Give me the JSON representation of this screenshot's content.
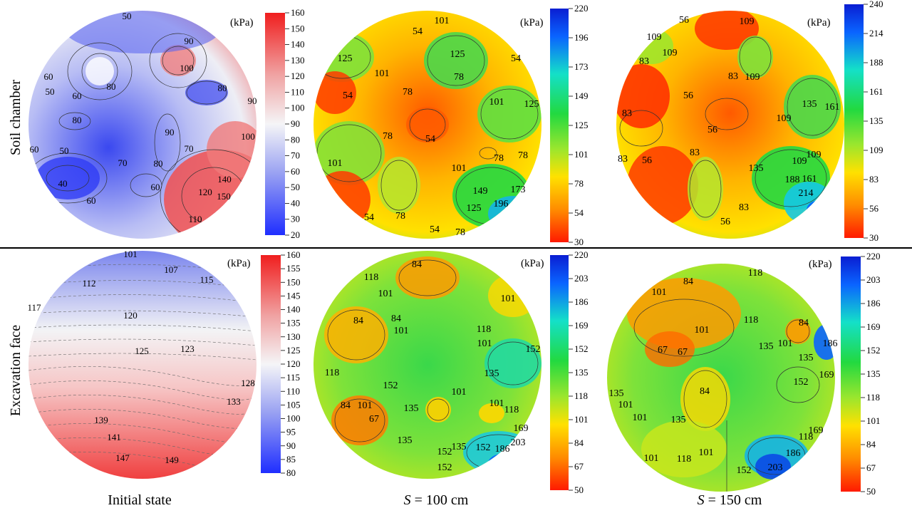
{
  "figure": {
    "row_labels": [
      "Soil chamber",
      "Excavation face"
    ],
    "column_captions": [
      {
        "text": "Initial state",
        "italic_prefix": "",
        "suffix": ""
      },
      {
        "text": "",
        "italic_prefix": "S",
        "suffix": " = 100 cm"
      },
      {
        "text": "",
        "italic_prefix": "S",
        "suffix": " = 150 cm"
      }
    ],
    "unit_label": "(kPa)"
  },
  "colors": {
    "blue": "#1f2eff",
    "light_blue": "#9aa2f2",
    "white": "#f5f5f7",
    "light_red": "#f0a3a3",
    "red": "#f01e1e",
    "rainbow": [
      "#ff1a00",
      "#ff8c00",
      "#ffe100",
      "#9ae62e",
      "#22d940",
      "#14e0c8",
      "#0a64ff",
      "#0a1ed2"
    ]
  },
  "chart_data": [
    {
      "type": "heatmap",
      "row": "Soil chamber",
      "column": "Initial state",
      "colorbar": {
        "unit": "(kPa)",
        "ticks": [
          160,
          150,
          140,
          130,
          120,
          110,
          100,
          90,
          80,
          70,
          60,
          50,
          40,
          30,
          20
        ],
        "scheme": "blue-white-red",
        "range": [
          20,
          160
        ]
      },
      "contour_labels": [
        50,
        90,
        100,
        60,
        50,
        60,
        60,
        80,
        90,
        80,
        80,
        90,
        100,
        70,
        50,
        80,
        70,
        40,
        60,
        60,
        140,
        120,
        150,
        110
      ]
    },
    {
      "type": "heatmap",
      "row": "Soil chamber",
      "column": "S = 100 cm",
      "colorbar": {
        "unit": "(kPa)",
        "ticks": [
          220,
          196,
          173,
          149,
          125,
          101,
          78,
          54,
          30
        ],
        "scheme": "rainbow",
        "range": [
          30,
          220
        ]
      },
      "contour_labels": [
        54,
        101,
        125,
        125,
        54,
        101,
        78,
        78,
        54,
        101,
        125,
        78,
        54,
        101,
        78,
        78,
        101,
        149,
        173,
        125,
        196,
        54,
        78,
        54,
        78
      ]
    },
    {
      "type": "heatmap",
      "row": "Soil chamber",
      "column": "S = 150 cm",
      "colorbar": {
        "unit": "(kPa)",
        "ticks": [
          240,
          214,
          188,
          161,
          135,
          109,
          83,
          56,
          30
        ],
        "scheme": "rainbow",
        "range": [
          30,
          240
        ]
      },
      "contour_labels": [
        56,
        109,
        109,
        109,
        83,
        109,
        83,
        56,
        135,
        161,
        83,
        56,
        109,
        83,
        109,
        56,
        83,
        135,
        109,
        161,
        188,
        214,
        83,
        56
      ]
    },
    {
      "type": "heatmap",
      "row": "Excavation face",
      "column": "Initial state",
      "colorbar": {
        "unit": "(kPa)",
        "ticks": [
          160,
          155,
          150,
          145,
          140,
          135,
          130,
          125,
          120,
          115,
          110,
          105,
          100,
          95,
          90,
          85,
          80
        ],
        "scheme": "blue-white-red",
        "range": [
          80,
          160
        ]
      },
      "contour_labels": [
        101,
        107,
        112,
        115,
        117,
        120,
        125,
        123,
        128,
        133,
        139,
        141,
        147,
        149
      ]
    },
    {
      "type": "heatmap",
      "row": "Excavation face",
      "column": "S = 100 cm",
      "colorbar": {
        "unit": "(kPa)",
        "ticks": [
          220,
          203,
          186,
          169,
          152,
          135,
          118,
          101,
          84,
          67,
          50
        ],
        "scheme": "rainbow",
        "range": [
          50,
          220
        ]
      },
      "contour_labels": [
        84,
        118,
        101,
        101,
        84,
        84,
        101,
        118,
        101,
        152,
        118,
        135,
        152,
        101,
        101,
        84,
        135,
        101,
        118,
        67,
        169,
        135,
        152,
        135,
        152,
        186,
        203,
        152
      ]
    },
    {
      "type": "heatmap",
      "row": "Excavation face",
      "column": "S = 150 cm",
      "colorbar": {
        "unit": "(kPa)",
        "ticks": [
          220,
          203,
          186,
          169,
          152,
          135,
          118,
          101,
          84,
          67,
          50
        ],
        "scheme": "rainbow",
        "range": [
          50,
          220
        ]
      },
      "contour_labels": [
        84,
        118,
        101,
        101,
        118,
        84,
        67,
        67,
        135,
        101,
        186,
        135,
        169,
        152,
        84,
        135,
        118,
        101,
        101,
        135,
        169,
        101,
        186,
        101,
        118,
        152,
        203
      ]
    }
  ]
}
